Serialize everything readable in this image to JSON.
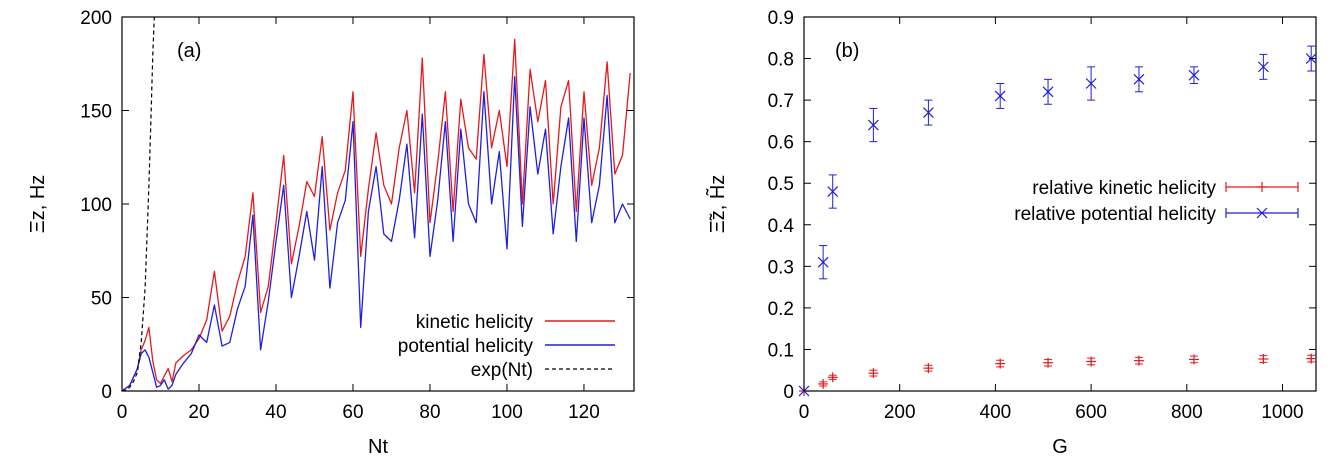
{
  "chart_data": [
    {
      "type": "line",
      "panel_label": "(a)",
      "xlabel": "Nt",
      "ylabel": "Ξz, Hz",
      "xlim": [
        0,
        133
      ],
      "ylim": [
        0,
        200
      ],
      "xticks": [
        0,
        20,
        40,
        60,
        80,
        100,
        120
      ],
      "yticks": [
        0,
        50,
        100,
        150,
        200
      ],
      "grid": false,
      "legend_position": "bottom-right",
      "series": [
        {
          "name": "kinetic helicity",
          "color": "#e41a1c",
          "style": "solid",
          "x": [
            0,
            2,
            4,
            5,
            6,
            7,
            8,
            9,
            10,
            11,
            12,
            13,
            14,
            16,
            18,
            20,
            22,
            24,
            26,
            28,
            30,
            32,
            34,
            36,
            38,
            40,
            42,
            44,
            46,
            48,
            50,
            52,
            54,
            56,
            58,
            60,
            62,
            64,
            66,
            68,
            70,
            72,
            74,
            76,
            78,
            80,
            82,
            84,
            86,
            88,
            90,
            92,
            94,
            96,
            98,
            100,
            102,
            104,
            106,
            108,
            110,
            112,
            114,
            116,
            118,
            120,
            122,
            124,
            126,
            128,
            130,
            132
          ],
          "values": [
            0,
            3,
            12,
            22,
            27,
            34,
            16,
            6,
            4,
            8,
            12,
            5,
            15,
            19,
            22,
            28,
            38,
            64,
            32,
            40,
            58,
            72,
            106,
            42,
            56,
            90,
            126,
            68,
            88,
            112,
            104,
            136,
            86,
            106,
            118,
            160,
            72,
            108,
            138,
            110,
            100,
            130,
            150,
            106,
            178,
            90,
            122,
            160,
            96,
            156,
            130,
            124,
            180,
            130,
            150,
            120,
            188,
            100,
            172,
            144,
            166,
            100,
            152,
            166,
            96,
            160,
            110,
            130,
            176,
            116,
            126,
            170
          ]
        },
        {
          "name": "potential helicity",
          "color": "#1f1fe0",
          "style": "solid",
          "x": [
            0,
            2,
            4,
            5,
            6,
            7,
            8,
            9,
            10,
            11,
            12,
            13,
            14,
            16,
            18,
            20,
            22,
            24,
            26,
            28,
            30,
            32,
            34,
            36,
            38,
            40,
            42,
            44,
            46,
            48,
            50,
            52,
            54,
            56,
            58,
            60,
            62,
            64,
            66,
            68,
            70,
            72,
            74,
            76,
            78,
            80,
            82,
            84,
            86,
            88,
            90,
            92,
            94,
            96,
            98,
            100,
            102,
            104,
            106,
            108,
            110,
            112,
            114,
            116,
            118,
            120,
            122,
            124,
            126,
            128,
            130,
            132
          ],
          "values": [
            0,
            3,
            12,
            20,
            22,
            18,
            10,
            2,
            3,
            6,
            1,
            3,
            9,
            15,
            20,
            30,
            26,
            46,
            24,
            26,
            44,
            56,
            94,
            22,
            48,
            80,
            110,
            50,
            72,
            96,
            70,
            120,
            55,
            90,
            102,
            144,
            34,
            96,
            120,
            84,
            80,
            102,
            132,
            82,
            148,
            72,
            102,
            144,
            80,
            140,
            100,
            90,
            160,
            100,
            128,
            76,
            168,
            88,
            152,
            116,
            140,
            84,
            120,
            146,
            80,
            146,
            90,
            110,
            158,
            90,
            100,
            92
          ]
        },
        {
          "name": "exp(Nt)",
          "color": "#000000",
          "style": "dashed",
          "x": [
            0,
            1,
            2,
            3,
            4,
            5,
            6,
            7,
            7.5,
            8,
            8.4
          ],
          "values": [
            0,
            0.5,
            2,
            5,
            10,
            26,
            55,
            110,
            145,
            180,
            200
          ]
        }
      ]
    },
    {
      "type": "scatter",
      "panel_label": "(b)",
      "xlabel": "G",
      "ylabel": "Ξ̃z, H̃z",
      "xlim": [
        0,
        1070
      ],
      "ylim": [
        0,
        0.9
      ],
      "xticks": [
        0,
        200,
        400,
        600,
        800,
        1000
      ],
      "yticks": [
        0,
        0.1,
        0.2,
        0.3,
        0.4,
        0.5,
        0.6,
        0.7,
        0.8,
        0.9
      ],
      "grid": false,
      "legend_position": "center-right",
      "series": [
        {
          "name": "relative kinetic helicity",
          "color": "#e41a1c",
          "marker": "plus",
          "x": [
            0,
            40,
            60,
            145,
            260,
            410,
            510,
            600,
            700,
            815,
            960,
            1060
          ],
          "values": [
            0.0,
            0.017,
            0.033,
            0.043,
            0.055,
            0.066,
            0.068,
            0.071,
            0.073,
            0.076,
            0.077,
            0.078
          ],
          "errors": [
            0.0,
            0.005,
            0.005,
            0.007,
            0.007,
            0.008,
            0.008,
            0.008,
            0.008,
            0.008,
            0.008,
            0.008
          ]
        },
        {
          "name": "relative potential helicity",
          "color": "#1f1fe0",
          "marker": "cross",
          "x": [
            0,
            40,
            60,
            145,
            260,
            410,
            510,
            600,
            700,
            815,
            960,
            1060
          ],
          "values": [
            0.0,
            0.31,
            0.48,
            0.64,
            0.67,
            0.71,
            0.72,
            0.74,
            0.75,
            0.76,
            0.78,
            0.8
          ],
          "errors": [
            0.0,
            0.04,
            0.04,
            0.04,
            0.03,
            0.03,
            0.03,
            0.04,
            0.03,
            0.02,
            0.03,
            0.03
          ]
        }
      ]
    }
  ]
}
